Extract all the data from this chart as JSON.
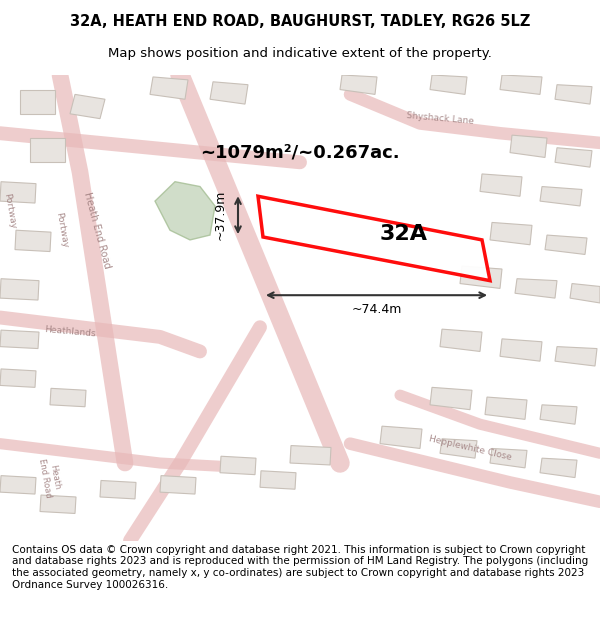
{
  "title_line1": "32A, HEATH END ROAD, BAUGHURST, TADLEY, RG26 5LZ",
  "title_line2": "Map shows position and indicative extent of the property.",
  "footer_text": "Contains OS data © Crown copyright and database right 2021. This information is subject to Crown copyright and database rights 2023 and is reproduced with the permission of HM Land Registry. The polygons (including the associated geometry, namely x, y co-ordinates) are subject to Crown copyright and database rights 2023 Ordnance Survey 100026316.",
  "area_label": "~1079m²/~0.267ac.",
  "width_label": "~74.4m",
  "height_label": "~37.9m",
  "property_label": "32A",
  "bg_color": "#f5f0eb",
  "map_bg": "#f0ece6",
  "road_color_major": "#e8c8c8",
  "road_color_minor": "#e8c8c8",
  "plot_color": "#ff0000",
  "plot_fill": "white",
  "green_area_color": "#c8d8c0",
  "building_color": "#d4ccc4",
  "building_stroke": "#c0b8b0",
  "dim_color": "#333333",
  "title_fontsize": 10.5,
  "subtitle_fontsize": 9.5,
  "footer_fontsize": 7.5
}
